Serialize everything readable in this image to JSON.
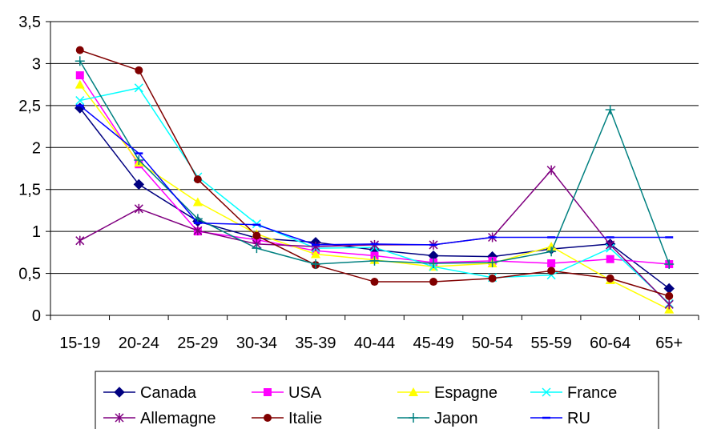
{
  "chart_data": {
    "type": "line",
    "title": "",
    "xlabel": "",
    "ylabel": "",
    "categories": [
      "15-19",
      "20-24",
      "25-29",
      "30-34",
      "35-39",
      "40-44",
      "45-49",
      "50-54",
      "55-59",
      "60-64",
      "65+"
    ],
    "y_ticks": [
      "0",
      "0,5",
      "1",
      "1,5",
      "2",
      "2,5",
      "3",
      "3,5"
    ],
    "ylim": [
      0,
      3.5
    ],
    "grid": "horizontal",
    "legend_position": "bottom",
    "series": [
      {
        "name": "Canada",
        "color": "#000080",
        "marker": "diamond",
        "values": [
          2.47,
          1.56,
          1.12,
          0.92,
          0.87,
          0.78,
          0.71,
          0.7,
          0.79,
          0.85,
          0.32
        ]
      },
      {
        "name": "USA",
        "color": "#FF00FF",
        "marker": "square",
        "values": [
          2.86,
          1.8,
          1.0,
          0.9,
          0.77,
          0.71,
          0.63,
          0.65,
          0.62,
          0.67,
          0.61
        ]
      },
      {
        "name": "Espagne",
        "color": "#FFFF00",
        "marker": "triangle",
        "values": [
          2.75,
          1.82,
          1.35,
          0.97,
          0.73,
          0.66,
          0.58,
          0.62,
          0.82,
          0.42,
          0.07
        ]
      },
      {
        "name": "France",
        "color": "#00FFFF",
        "marker": "x",
        "values": [
          2.56,
          2.71,
          1.65,
          1.09,
          0.8,
          0.81,
          0.58,
          0.45,
          0.48,
          0.8,
          0.14
        ]
      },
      {
        "name": "Allemagne",
        "color": "#800080",
        "marker": "star",
        "values": [
          0.89,
          1.27,
          1.01,
          0.85,
          0.82,
          0.84,
          0.84,
          0.93,
          1.73,
          0.84,
          0.13
        ]
      },
      {
        "name": "Italie",
        "color": "#800000",
        "marker": "circle",
        "values": [
          3.16,
          2.92,
          1.62,
          0.95,
          0.6,
          0.4,
          0.4,
          0.44,
          0.53,
          0.44,
          0.23
        ]
      },
      {
        "name": "Japon",
        "color": "#008080",
        "marker": "plus",
        "values": [
          3.03,
          1.85,
          1.15,
          0.8,
          0.61,
          0.65,
          0.62,
          0.63,
          0.76,
          2.45,
          0.61
        ]
      },
      {
        "name": "RU",
        "color": "#0000FF",
        "marker": "dash",
        "values": [
          2.5,
          1.93,
          1.1,
          1.08,
          0.84,
          0.85,
          0.84,
          0.93,
          0.93,
          0.93,
          0.93
        ]
      }
    ]
  }
}
